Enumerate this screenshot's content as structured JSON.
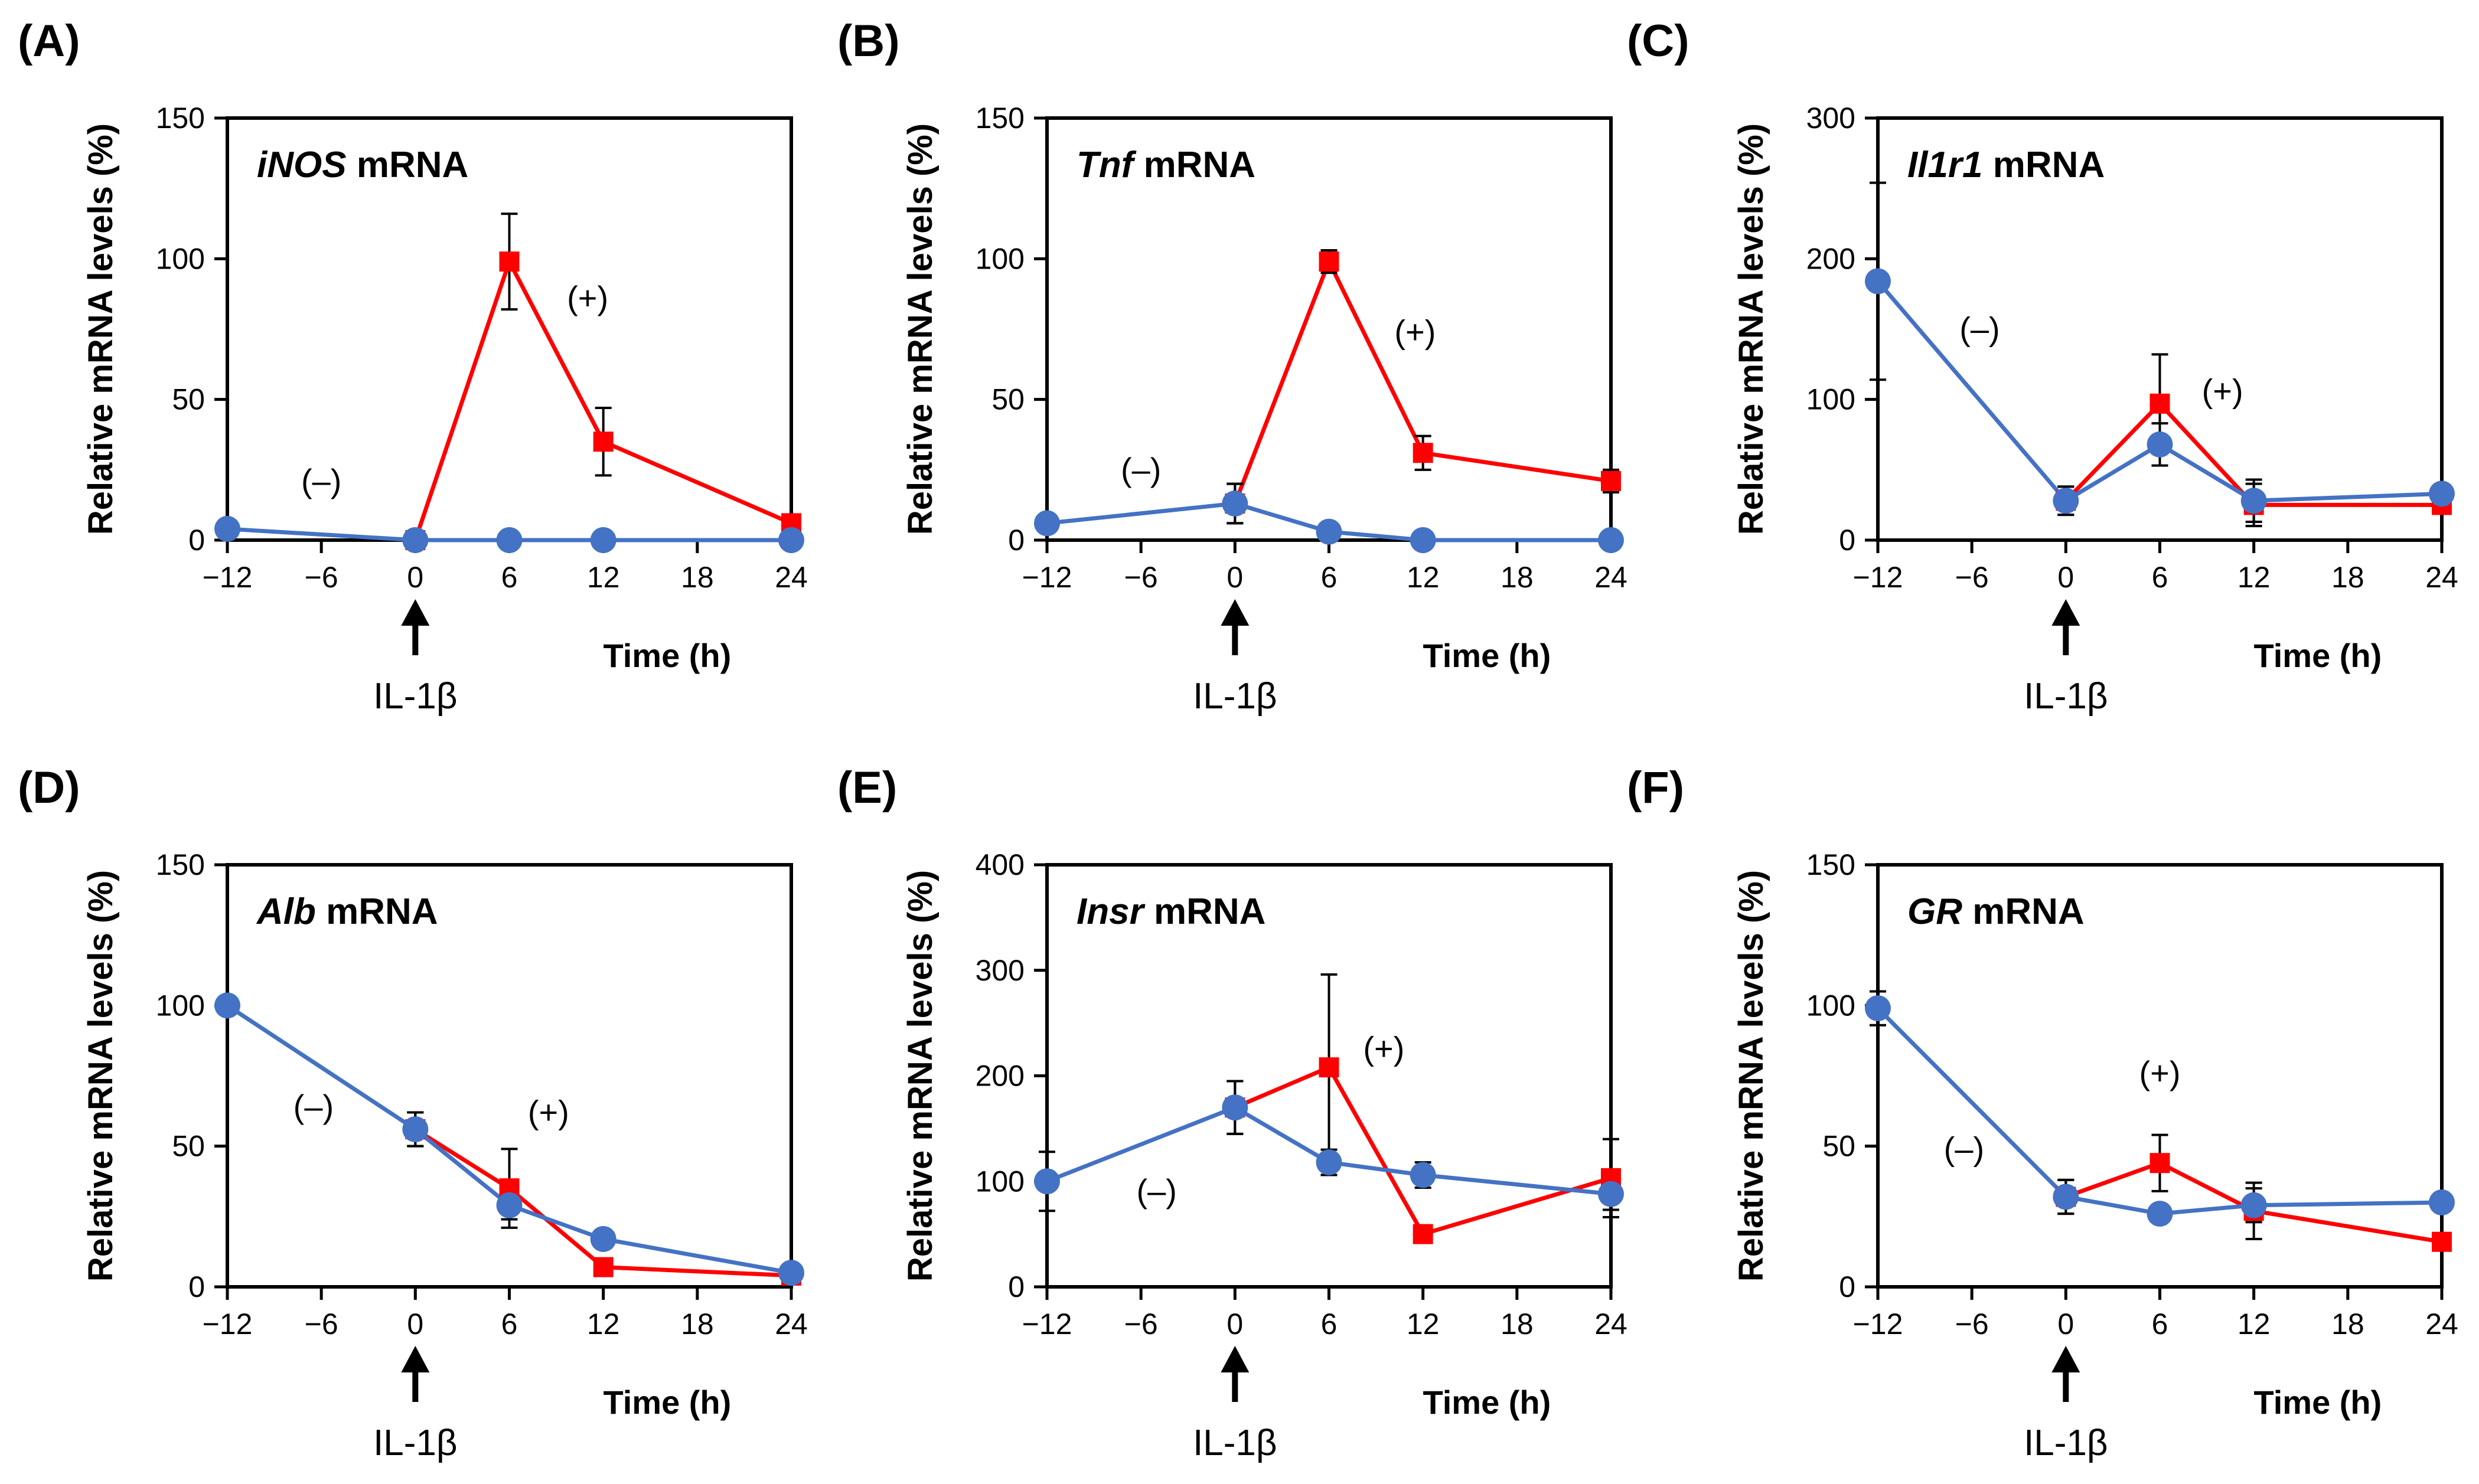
{
  "figure": {
    "stimulus_label": "IL-1β",
    "series_colors": {
      "plus": "#ff0000",
      "minus": "#4472c4"
    }
  },
  "chart_data": [
    {
      "type": "line",
      "panel": "(A)",
      "title_italic": "iNOS",
      "title_rest": " mRNA",
      "xlabel": "Time (h)",
      "ylabel": "Relative mRNA levels (%)",
      "xticks": [
        -12,
        -6,
        0,
        6,
        12,
        18,
        24
      ],
      "yticks": [
        0,
        50,
        100,
        150
      ],
      "xlim": [
        -12,
        24
      ],
      "ylim": [
        0,
        150
      ],
      "annotations": [
        {
          "text": "(–)",
          "x": -6,
          "y": 17
        },
        {
          "text": "(+)",
          "x": 11,
          "y": 82
        }
      ],
      "series": [
        {
          "name": "(+)",
          "color": "#ff0000",
          "marker": "square",
          "x": [
            0,
            6,
            12,
            24
          ],
          "y": [
            0,
            99,
            35,
            6
          ],
          "err": [
            0,
            17,
            12,
            1
          ]
        },
        {
          "name": "(–)",
          "color": "#4472c4",
          "marker": "circle",
          "x": [
            -12,
            0,
            6,
            12,
            24
          ],
          "y": [
            4,
            0,
            0,
            0,
            0
          ],
          "err": [
            0,
            0,
            0,
            0,
            0
          ]
        }
      ]
    },
    {
      "type": "line",
      "panel": "(B)",
      "title_italic": "Tnf",
      "title_rest": " mRNA",
      "xlabel": "Time (h)",
      "ylabel": "Relative mRNA levels (%)",
      "xticks": [
        -12,
        -6,
        0,
        6,
        12,
        18,
        24
      ],
      "yticks": [
        0,
        50,
        100,
        150
      ],
      "xlim": [
        -12,
        24
      ],
      "ylim": [
        0,
        150
      ],
      "annotations": [
        {
          "text": "(–)",
          "x": -6,
          "y": 21
        },
        {
          "text": "(+)",
          "x": 11.5,
          "y": 70
        }
      ],
      "series": [
        {
          "name": "(+)",
          "color": "#ff0000",
          "marker": "square",
          "x": [
            0,
            6,
            12,
            24
          ],
          "y": [
            13,
            99,
            31,
            21
          ],
          "err": [
            7,
            4,
            6,
            4
          ]
        },
        {
          "name": "(–)",
          "color": "#4472c4",
          "marker": "circle",
          "x": [
            -12,
            0,
            6,
            12,
            24
          ],
          "y": [
            6,
            13,
            3,
            0,
            0
          ],
          "err": [
            0,
            7,
            0,
            0,
            0
          ]
        }
      ]
    },
    {
      "type": "line",
      "panel": "(C)",
      "title_italic": "Il1r1",
      "title_rest": " mRNA",
      "xlabel": "Time (h)",
      "ylabel": "Relative mRNA levels (%)",
      "xticks": [
        -12,
        -6,
        0,
        6,
        12,
        18,
        24
      ],
      "yticks": [
        0,
        100,
        200,
        300
      ],
      "xlim": [
        -12,
        24
      ],
      "ylim": [
        0,
        300
      ],
      "annotations": [
        {
          "text": "(–)",
          "x": -5.5,
          "y": 142
        },
        {
          "text": "(+)",
          "x": 10,
          "y": 98
        }
      ],
      "series": [
        {
          "name": "(+)",
          "color": "#ff0000",
          "marker": "square",
          "x": [
            0,
            6,
            12,
            24
          ],
          "y": [
            28,
            97,
            25,
            25
          ],
          "err": [
            10,
            35,
            15,
            5
          ]
        },
        {
          "name": "(–)",
          "color": "#4472c4",
          "marker": "circle",
          "x": [
            -12,
            0,
            6,
            12,
            24
          ],
          "y": [
            184,
            28,
            68,
            28,
            33
          ],
          "err": [
            70,
            10,
            15,
            15,
            6
          ]
        }
      ]
    },
    {
      "type": "line",
      "panel": "(D)",
      "title_italic": "Alb",
      "title_rest": " mRNA",
      "xlabel": "Time (h)",
      "ylabel": "Relative mRNA levels (%)",
      "xticks": [
        -12,
        -6,
        0,
        6,
        12,
        18,
        24
      ],
      "yticks": [
        0,
        50,
        100,
        150
      ],
      "xlim": [
        -12,
        24
      ],
      "ylim": [
        0,
        150
      ],
      "annotations": [
        {
          "text": "(–)",
          "x": -6.5,
          "y": 60
        },
        {
          "text": "(+)",
          "x": 8.5,
          "y": 58
        }
      ],
      "series": [
        {
          "name": "(+)",
          "color": "#ff0000",
          "marker": "square",
          "x": [
            0,
            6,
            12,
            24
          ],
          "y": [
            56,
            35,
            7,
            4
          ],
          "err": [
            6,
            14,
            0,
            0
          ]
        },
        {
          "name": "(–)",
          "color": "#4472c4",
          "marker": "circle",
          "x": [
            -12,
            0,
            6,
            12,
            24
          ],
          "y": [
            100,
            56,
            29,
            17,
            5
          ],
          "err": [
            0,
            6,
            5,
            0,
            0
          ]
        }
      ]
    },
    {
      "type": "line",
      "panel": "(E)",
      "title_italic": "Insr",
      "title_rest": " mRNA",
      "xlabel": "Time (h)",
      "ylabel": "Relative mRNA levels (%)",
      "xticks": [
        -12,
        -6,
        0,
        6,
        12,
        18,
        24
      ],
      "yticks": [
        0,
        100,
        200,
        300,
        400
      ],
      "xlim": [
        -12,
        24
      ],
      "ylim": [
        0,
        400
      ],
      "annotations": [
        {
          "text": "(–)",
          "x": -5,
          "y": 80
        },
        {
          "text": "(+)",
          "x": 9.5,
          "y": 215
        }
      ],
      "series": [
        {
          "name": "(+)",
          "color": "#ff0000",
          "marker": "square",
          "x": [
            0,
            6,
            12,
            24
          ],
          "y": [
            170,
            208,
            50,
            103
          ],
          "err": [
            25,
            88,
            0,
            37
          ]
        },
        {
          "name": "(–)",
          "color": "#4472c4",
          "marker": "circle",
          "x": [
            -12,
            0,
            6,
            12,
            24
          ],
          "y": [
            100,
            170,
            118,
            106,
            88
          ],
          "err": [
            28,
            25,
            12,
            12,
            15
          ]
        }
      ]
    },
    {
      "type": "line",
      "panel": "(F)",
      "title_italic": "GR",
      "title_rest": " mRNA",
      "xlabel": "Time (h)",
      "ylabel": "Relative mRNA levels (%)",
      "xticks": [
        -12,
        -6,
        0,
        6,
        12,
        18,
        24
      ],
      "yticks": [
        0,
        50,
        100,
        150
      ],
      "xlim": [
        -12,
        24
      ],
      "ylim": [
        0,
        150
      ],
      "annotations": [
        {
          "text": "(–)",
          "x": -6.5,
          "y": 45
        },
        {
          "text": "(+)",
          "x": 6,
          "y": 72
        }
      ],
      "series": [
        {
          "name": "(+)",
          "color": "#ff0000",
          "marker": "square",
          "x": [
            0,
            6,
            12,
            24
          ],
          "y": [
            32,
            44,
            27,
            16
          ],
          "err": [
            6,
            10,
            10,
            0
          ]
        },
        {
          "name": "(–)",
          "color": "#4472c4",
          "marker": "circle",
          "x": [
            -12,
            0,
            6,
            12,
            24
          ],
          "y": [
            99,
            32,
            26,
            29,
            30
          ],
          "err": [
            6,
            6,
            0,
            6,
            0
          ]
        }
      ]
    }
  ]
}
